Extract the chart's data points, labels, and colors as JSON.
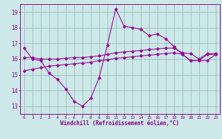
{
  "x": [
    0,
    1,
    2,
    3,
    4,
    5,
    6,
    7,
    8,
    9,
    10,
    11,
    12,
    13,
    14,
    15,
    16,
    17,
    18,
    19,
    20,
    21,
    22,
    23
  ],
  "line1": [
    16.7,
    16.0,
    15.9,
    15.1,
    14.7,
    14.1,
    13.3,
    13.0,
    13.5,
    14.8,
    16.9,
    19.2,
    18.1,
    18.0,
    17.9,
    17.5,
    17.6,
    17.3,
    16.8,
    16.3,
    15.9,
    15.9,
    16.3,
    16.3
  ],
  "line2": [
    16.1,
    16.1,
    16.0,
    16.0,
    16.0,
    16.05,
    16.1,
    16.1,
    16.15,
    16.2,
    16.3,
    16.4,
    16.45,
    16.5,
    16.55,
    16.6,
    16.65,
    16.7,
    16.7,
    16.4,
    16.35,
    16.0,
    16.35,
    16.35
  ],
  "line3": [
    15.25,
    15.35,
    15.45,
    15.55,
    15.6,
    15.65,
    15.7,
    15.75,
    15.8,
    15.9,
    15.95,
    16.05,
    16.1,
    16.15,
    16.2,
    16.25,
    16.3,
    16.35,
    16.4,
    16.3,
    15.9,
    15.9,
    15.9,
    16.3
  ],
  "line_color": "#990099",
  "bg_color": "#cce8e8",
  "grid_color": "#99bbbb",
  "axis_color": "#880088",
  "xlabel": "Windchill (Refroidissement éolien,°C)",
  "ylim": [
    12.5,
    19.5
  ],
  "xlim": [
    -0.5,
    23.5
  ],
  "yticks": [
    13,
    14,
    15,
    16,
    17,
    18,
    19
  ],
  "xticks": [
    0,
    1,
    2,
    3,
    4,
    5,
    6,
    7,
    8,
    9,
    10,
    11,
    12,
    13,
    14,
    15,
    16,
    17,
    18,
    19,
    20,
    21,
    22,
    23
  ]
}
